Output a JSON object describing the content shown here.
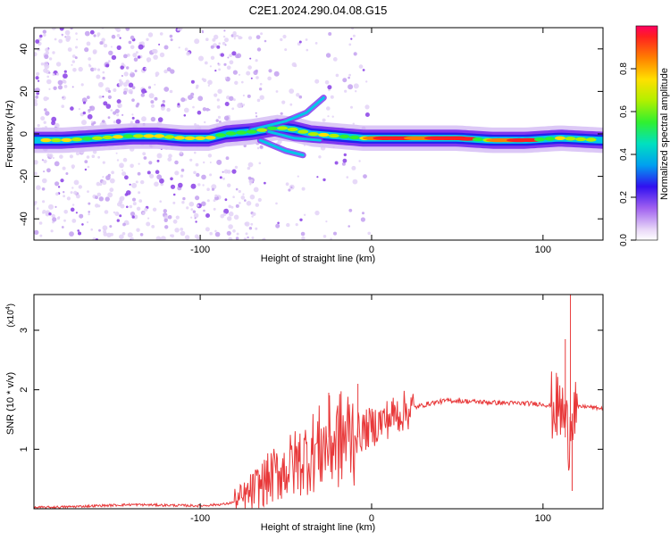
{
  "page": {
    "title": "C2E1.2024.290.04.08.G15"
  },
  "chart_data": [
    {
      "type": "heatmap",
      "xlabel": "Height of straight line (km)",
      "ylabel": "Frequency (Hz)",
      "xlim": [
        -197,
        135
      ],
      "ylim": [
        -50,
        50
      ],
      "x_ticks": [
        -100,
        0,
        100
      ],
      "x_tick_labels": [
        "-100",
        "0",
        "100"
      ],
      "y_ticks": [
        -40,
        -20,
        0,
        20,
        40
      ],
      "y_tick_labels": [
        "-40",
        "-20",
        "0",
        "20",
        "40"
      ],
      "colorbar": {
        "label": "Normalized spectral amplitude",
        "range": [
          0,
          1
        ],
        "ticks": [
          0.0,
          0.2,
          0.4,
          0.6,
          0.8
        ],
        "tick_labels": [
          "0.0",
          "0.2",
          "0.4",
          "0.6",
          "0.8"
        ]
      },
      "grid": false,
      "ridge": [
        {
          "x": -197,
          "y": -3
        },
        {
          "x": -180,
          "y": -3
        },
        {
          "x": -160,
          "y": -2
        },
        {
          "x": -140,
          "y": -1
        },
        {
          "x": -125,
          "y": -1
        },
        {
          "x": -110,
          "y": -2
        },
        {
          "x": -95,
          "y": -2
        },
        {
          "x": -85,
          "y": 0
        },
        {
          "x": -70,
          "y": 1
        },
        {
          "x": -55,
          "y": 3
        },
        {
          "x": -45,
          "y": 2
        },
        {
          "x": -35,
          "y": 0
        },
        {
          "x": -20,
          "y": -1
        },
        {
          "x": -5,
          "y": -2
        },
        {
          "x": 10,
          "y": -2
        },
        {
          "x": 30,
          "y": -2
        },
        {
          "x": 50,
          "y": -2
        },
        {
          "x": 70,
          "y": -3
        },
        {
          "x": 90,
          "y": -3
        },
        {
          "x": 110,
          "y": -2
        },
        {
          "x": 135,
          "y": -3
        }
      ]
    },
    {
      "type": "line",
      "xlabel": "Height of straight line (km)",
      "ylabel": "SNR (10 * v/v)",
      "y_scale_label": "(x10",
      "y_scale_exponent": "4",
      "y_scale_suffix": ")",
      "xlim": [
        -197,
        135
      ],
      "ylim": [
        0,
        3.6
      ],
      "x_ticks": [
        -100,
        0,
        100
      ],
      "x_tick_labels": [
        "-100",
        "0",
        "100"
      ],
      "y_ticks": [
        1,
        2,
        3
      ],
      "y_tick_labels": [
        "1",
        "2",
        "3"
      ],
      "color": "#e8393a",
      "grid": false,
      "series": [
        {
          "points": [
            {
              "x": -197,
              "y": 0.02
            },
            {
              "x": -180,
              "y": 0.03
            },
            {
              "x": -160,
              "y": 0.05
            },
            {
              "x": -140,
              "y": 0.07
            },
            {
              "x": -120,
              "y": 0.06
            },
            {
              "x": -100,
              "y": 0.05
            },
            {
              "x": -85,
              "y": 0.08
            },
            {
              "x": -75,
              "y": 0.15
            },
            {
              "x": -65,
              "y": 0.4
            },
            {
              "x": -55,
              "y": 0.6
            },
            {
              "x": -45,
              "y": 0.75
            },
            {
              "x": -35,
              "y": 0.95
            },
            {
              "x": -25,
              "y": 1.1
            },
            {
              "x": -15,
              "y": 1.2
            },
            {
              "x": -5,
              "y": 1.3
            },
            {
              "x": 5,
              "y": 1.45
            },
            {
              "x": 15,
              "y": 1.6
            },
            {
              "x": 25,
              "y": 1.7
            },
            {
              "x": 35,
              "y": 1.78
            },
            {
              "x": 45,
              "y": 1.82
            },
            {
              "x": 60,
              "y": 1.8
            },
            {
              "x": 75,
              "y": 1.78
            },
            {
              "x": 90,
              "y": 1.77
            },
            {
              "x": 100,
              "y": 1.76
            },
            {
              "x": 108,
              "y": 1.7
            },
            {
              "x": 112,
              "y": 1.6
            },
            {
              "x": 115,
              "y": 1.2
            },
            {
              "x": 117,
              "y": 1.7
            },
            {
              "x": 125,
              "y": 1.72
            },
            {
              "x": 135,
              "y": 1.68
            }
          ]
        }
      ]
    }
  ]
}
